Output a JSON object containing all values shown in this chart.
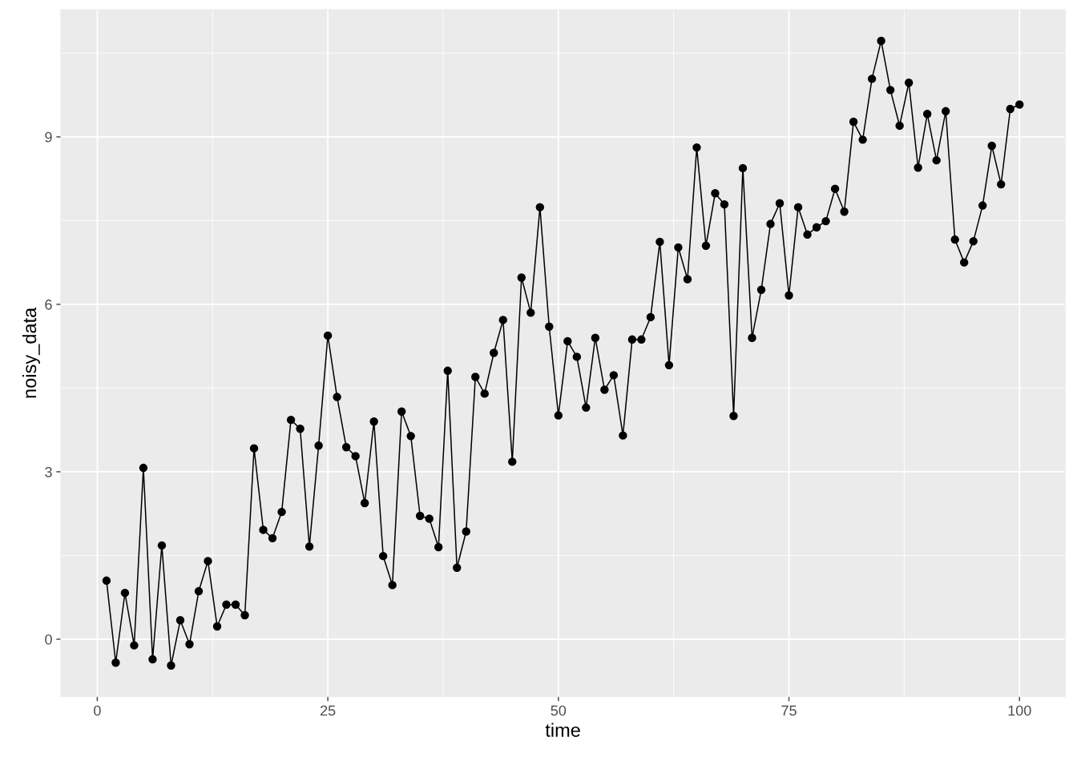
{
  "chart_data": {
    "type": "line",
    "xlabel": "time",
    "ylabel": "noisy_data",
    "marker": "circle",
    "line_style": "solid",
    "grid": true,
    "legend": false,
    "xlim": [
      -3.95,
      104.95
    ],
    "ylim": [
      -1.03,
      11.28
    ],
    "xticks": [
      0,
      25,
      50,
      75,
      100
    ],
    "yticks": [
      0,
      3,
      6,
      9
    ],
    "series": [
      {
        "color": "#000000",
        "x": [
          1,
          2,
          3,
          4,
          5,
          6,
          7,
          8,
          9,
          10,
          11,
          12,
          13,
          14,
          15,
          16,
          17,
          18,
          19,
          20,
          21,
          22,
          23,
          24,
          25,
          26,
          27,
          28,
          29,
          30,
          31,
          32,
          33,
          34,
          35,
          36,
          37,
          38,
          39,
          40,
          41,
          42,
          43,
          44,
          45,
          46,
          47,
          48,
          49,
          50,
          51,
          52,
          53,
          54,
          55,
          56,
          57,
          58,
          59,
          60,
          61,
          62,
          63,
          64,
          65,
          66,
          67,
          68,
          69,
          70,
          71,
          72,
          73,
          74,
          75,
          76,
          77,
          78,
          79,
          80,
          81,
          82,
          83,
          84,
          85,
          86,
          87,
          88,
          89,
          90,
          91,
          92,
          93,
          94,
          95,
          96,
          97,
          98,
          99,
          100
        ],
        "values": [
          1.05,
          -0.42,
          0.83,
          -0.11,
          3.07,
          -0.36,
          1.68,
          -0.47,
          0.34,
          -0.09,
          0.86,
          1.4,
          0.23,
          0.62,
          0.62,
          0.43,
          3.42,
          1.96,
          1.81,
          2.28,
          3.93,
          3.77,
          1.66,
          3.47,
          5.44,
          4.34,
          3.44,
          3.28,
          2.44,
          3.9,
          1.49,
          0.97,
          4.08,
          3.64,
          2.21,
          2.16,
          1.65,
          4.81,
          1.28,
          1.93,
          4.7,
          4.4,
          5.13,
          5.72,
          3.18,
          6.48,
          5.85,
          7.74,
          5.6,
          4.01,
          5.34,
          5.06,
          4.15,
          5.4,
          4.47,
          4.73,
          3.65,
          5.37,
          5.37,
          5.77,
          7.12,
          4.91,
          7.02,
          6.45,
          8.81,
          7.05,
          7.99,
          7.79,
          4.0,
          8.44,
          5.4,
          6.26,
          7.44,
          7.81,
          6.16,
          7.74,
          7.25,
          7.38,
          7.49,
          8.07,
          7.66,
          9.27,
          8.95,
          10.04,
          10.72,
          9.84,
          9.2,
          9.97,
          8.45,
          9.41,
          8.58,
          9.46,
          7.16,
          6.75,
          7.13,
          7.77,
          8.84,
          8.15,
          9.5,
          9.58
        ]
      }
    ]
  }
}
